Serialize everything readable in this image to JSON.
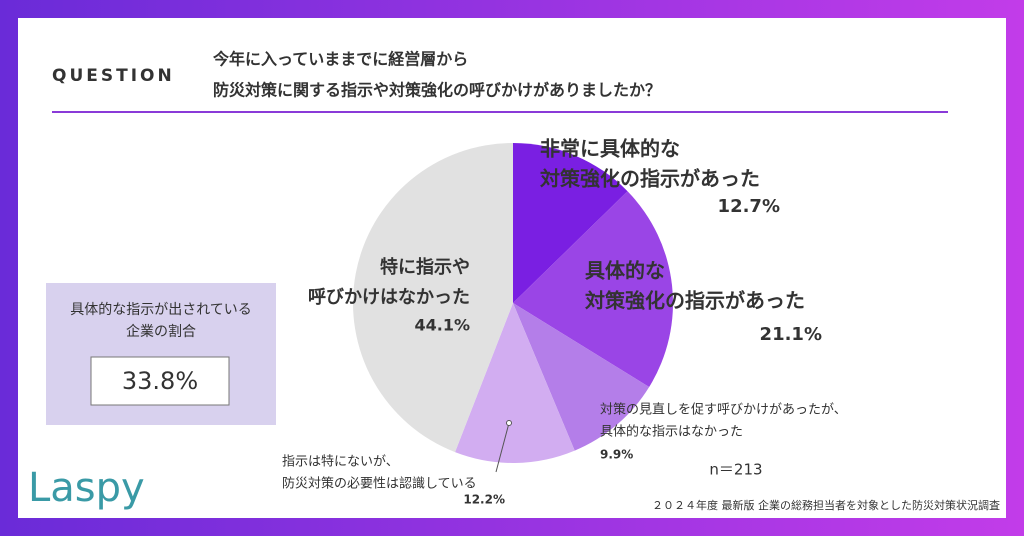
{
  "chart_data": {
    "type": "pie",
    "question_label": "QUESTION",
    "title": [
      "今年に入っていままでに経営層から",
      "防災対策に関する指示や対策強化の呼びかけがありましたか？"
    ],
    "categories": [
      [
        "非常に具体的な",
        "対策強化の指示があった"
      ],
      [
        "具体的な",
        "対策強化の指示があった"
      ],
      [
        "対策の見直しを促す呼びかけがあったが、",
        "具体的な指示はなかった"
      ],
      [
        "指示は特にないが、",
        "防災対策の必要性は認識している"
      ],
      [
        "特に指示や",
        "呼びかけはなかった"
      ]
    ],
    "values": [
      12.7,
      21.1,
      9.9,
      12.2,
      44.1
    ],
    "value_labels": [
      "12.7%",
      "21.1%",
      "9.9%",
      "12.2%",
      "44.1%"
    ],
    "colors": [
      "#7a1fe2",
      "#9a45e6",
      "#b47ee9",
      "#d2adf1",
      "#e1e1e1"
    ],
    "summary_label": [
      "具体的な指示が出されている",
      "企業の割合"
    ],
    "summary_value": "33.8%",
    "sample_size": "n＝213",
    "source": "２０２４年度 最新版 企業の総務担当者を対象とした防災対策状況調査",
    "logo": "Laspy"
  }
}
